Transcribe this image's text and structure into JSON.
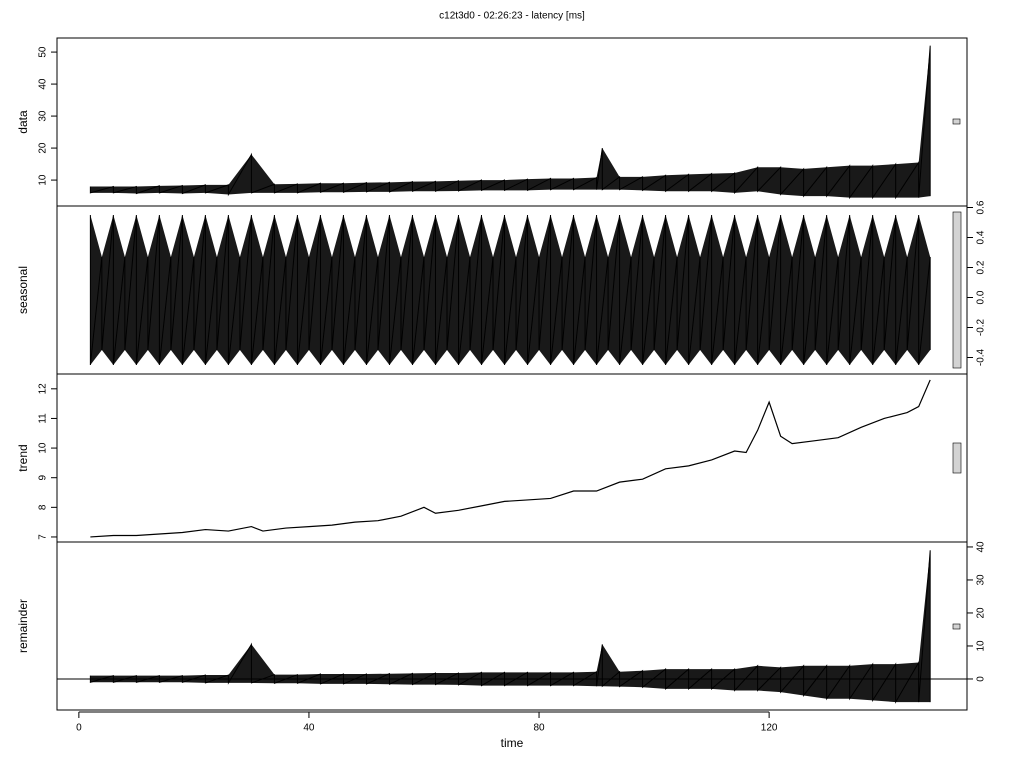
{
  "title": "c12t3d0 - 02:26:23 - latency [ms]",
  "chart_data": [
    {
      "type": "band",
      "ylabel": "data",
      "axis_side": "left",
      "xlim": [
        -3.8,
        154.4
      ],
      "ylim": [
        1.9,
        54.4
      ],
      "yticks": [
        10,
        20,
        30,
        40,
        50
      ],
      "x": [
        2,
        6,
        10,
        14,
        18,
        22,
        26,
        30,
        34,
        38,
        42,
        46,
        50,
        54,
        58,
        62,
        66,
        70,
        74,
        78,
        82,
        86,
        90,
        91,
        94,
        98,
        102,
        106,
        110,
        114,
        118,
        122,
        126,
        130,
        134,
        138,
        142,
        146,
        148
      ],
      "series": [
        {
          "color": "#000000",
          "values": [
            8,
            8,
            8,
            8.2,
            8.3,
            8.5,
            8.5,
            18,
            8.7,
            8.8,
            9,
            9,
            9.2,
            9.3,
            9.5,
            9.6,
            9.8,
            10,
            10,
            10.3,
            10.5,
            10.5,
            10.8,
            20,
            11,
            11,
            11.5,
            11.8,
            12,
            12.2,
            14,
            14,
            13.5,
            14,
            14.5,
            14.5,
            15,
            15.5,
            52
          ]
        },
        {
          "color": "#000000",
          "values": [
            6,
            6,
            5.8,
            6,
            5.8,
            6,
            5.5,
            6,
            6,
            6,
            6.2,
            6.2,
            6.3,
            6.3,
            6.5,
            6.5,
            6.6,
            6.8,
            6.8,
            6.8,
            7,
            7,
            7,
            7,
            7,
            6.8,
            6.5,
            6.5,
            6.5,
            6,
            6.5,
            5.5,
            5,
            5,
            4.5,
            4.5,
            4.5,
            4.5,
            5
          ]
        }
      ]
    },
    {
      "type": "band",
      "ylabel": "seasonal",
      "axis_side": "right",
      "xlim": [
        -3.8,
        154.4
      ],
      "ylim": [
        -0.51,
        0.61
      ],
      "yticks": [
        -0.4,
        -0.2,
        {
          "value": 0,
          "label": "0.0"
        },
        0.2,
        0.4,
        0.6
      ],
      "x": [
        2,
        4,
        6,
        8,
        10,
        12,
        14,
        16,
        18,
        20,
        22,
        24,
        26,
        28,
        30,
        32,
        34,
        36,
        38,
        40,
        42,
        44,
        46,
        48,
        50,
        52,
        54,
        56,
        58,
        60,
        62,
        64,
        66,
        68,
        70,
        72,
        74,
        76,
        78,
        80,
        82,
        84,
        86,
        88,
        90,
        92,
        94,
        96,
        98,
        100,
        102,
        104,
        106,
        108,
        110,
        112,
        114,
        116,
        118,
        120,
        122,
        124,
        126,
        128,
        130,
        132,
        134,
        136,
        138,
        140,
        142,
        144,
        146,
        148
      ],
      "series": [
        {
          "color": "#000000",
          "values": [
            0.55,
            0.27,
            0.55,
            0.27,
            0.55,
            0.27,
            0.55,
            0.27,
            0.55,
            0.27,
            0.55,
            0.27,
            0.55,
            0.27,
            0.55,
            0.27,
            0.55,
            0.27,
            0.55,
            0.27,
            0.55,
            0.27,
            0.55,
            0.27,
            0.55,
            0.27,
            0.55,
            0.27,
            0.55,
            0.27,
            0.55,
            0.27,
            0.55,
            0.27,
            0.55,
            0.27,
            0.55,
            0.27,
            0.55,
            0.27,
            0.55,
            0.27,
            0.55,
            0.27,
            0.55,
            0.27,
            0.55,
            0.27,
            0.55,
            0.27,
            0.55,
            0.27,
            0.55,
            0.27,
            0.55,
            0.27,
            0.55,
            0.27,
            0.55,
            0.27,
            0.55,
            0.27,
            0.55,
            0.27,
            0.55,
            0.27,
            0.55,
            0.27,
            0.55,
            0.27,
            0.55,
            0.27,
            0.55,
            0.27
          ]
        },
        {
          "color": "#000000",
          "values": [
            -0.45,
            -0.35,
            -0.45,
            -0.35,
            -0.45,
            -0.35,
            -0.45,
            -0.35,
            -0.45,
            -0.35,
            -0.45,
            -0.35,
            -0.45,
            -0.35,
            -0.45,
            -0.35,
            -0.45,
            -0.35,
            -0.45,
            -0.35,
            -0.45,
            -0.35,
            -0.45,
            -0.35,
            -0.45,
            -0.35,
            -0.45,
            -0.35,
            -0.45,
            -0.35,
            -0.45,
            -0.35,
            -0.45,
            -0.35,
            -0.45,
            -0.35,
            -0.45,
            -0.35,
            -0.45,
            -0.35,
            -0.45,
            -0.35,
            -0.45,
            -0.35,
            -0.45,
            -0.35,
            -0.45,
            -0.35,
            -0.45,
            -0.35,
            -0.45,
            -0.35,
            -0.45,
            -0.35,
            -0.45,
            -0.35,
            -0.45,
            -0.35,
            -0.45,
            -0.35,
            -0.45,
            -0.35,
            -0.45,
            -0.35,
            -0.45,
            -0.35,
            -0.45,
            -0.35,
            -0.45,
            -0.35,
            -0.45,
            -0.35,
            -0.45,
            -0.35
          ]
        }
      ]
    },
    {
      "type": "line",
      "ylabel": "trend",
      "axis_side": "left",
      "xlim": [
        -3.8,
        154.4
      ],
      "ylim": [
        6.83,
        12.5
      ],
      "yticks": [
        7,
        8,
        9,
        10,
        11,
        12
      ],
      "x": [
        2,
        6,
        10,
        14,
        18,
        22,
        26,
        30,
        32,
        36,
        40,
        44,
        48,
        52,
        56,
        60,
        62,
        66,
        70,
        74,
        78,
        82,
        86,
        90,
        94,
        98,
        102,
        106,
        110,
        114,
        116,
        118,
        120,
        122,
        124,
        128,
        132,
        136,
        140,
        144,
        146,
        148
      ],
      "series": [
        {
          "color": "#000000",
          "values": [
            7,
            7.05,
            7.05,
            7.1,
            7.15,
            7.25,
            7.2,
            7.35,
            7.2,
            7.3,
            7.35,
            7.4,
            7.5,
            7.55,
            7.7,
            8,
            7.8,
            7.9,
            8.05,
            8.2,
            8.25,
            8.3,
            8.55,
            8.55,
            8.85,
            8.95,
            9.3,
            9.4,
            9.6,
            9.9,
            9.85,
            10.6,
            11.55,
            10.4,
            10.15,
            10.25,
            10.35,
            10.7,
            11,
            11.2,
            11.4,
            12.3
          ]
        }
      ]
    },
    {
      "type": "band",
      "ylabel": "remainder",
      "axis_side": "right",
      "zero_line": true,
      "xlim": [
        -3.8,
        154.4
      ],
      "ylim": [
        -9.4,
        41.5
      ],
      "yticks": [
        0,
        10,
        20,
        30,
        40
      ],
      "xticks": [
        0,
        40,
        80,
        120
      ],
      "xlabel": "time",
      "x": [
        2,
        6,
        10,
        14,
        18,
        22,
        26,
        30,
        34,
        38,
        42,
        46,
        50,
        54,
        58,
        62,
        66,
        70,
        74,
        78,
        82,
        86,
        90,
        91,
        94,
        98,
        102,
        106,
        110,
        114,
        118,
        122,
        126,
        130,
        134,
        138,
        142,
        146,
        148
      ],
      "series": [
        {
          "color": "#000000",
          "values": [
            1,
            1,
            1,
            1,
            1,
            1.2,
            1.2,
            10.5,
            1.3,
            1.3,
            1.5,
            1.5,
            1.5,
            1.6,
            1.7,
            1.8,
            1.8,
            2,
            2,
            2,
            2,
            2,
            2.2,
            10.5,
            2.2,
            2.5,
            3,
            3,
            3,
            3,
            4,
            3.5,
            4,
            4,
            4,
            4.5,
            4.5,
            5,
            39
          ]
        },
        {
          "color": "#000000",
          "values": [
            -1,
            -1,
            -1,
            -1,
            -1,
            -1.2,
            -1.2,
            -1.2,
            -1.3,
            -1.3,
            -1.5,
            -1.5,
            -1.5,
            -1.6,
            -1.7,
            -1.7,
            -1.8,
            -2,
            -2,
            -2,
            -2,
            -2,
            -2.2,
            -2.2,
            -2.3,
            -2.5,
            -3,
            -3,
            -3,
            -3.5,
            -3.5,
            -4,
            -5,
            -6,
            -6,
            -6.5,
            -7,
            -7,
            -7
          ]
        }
      ]
    }
  ]
}
